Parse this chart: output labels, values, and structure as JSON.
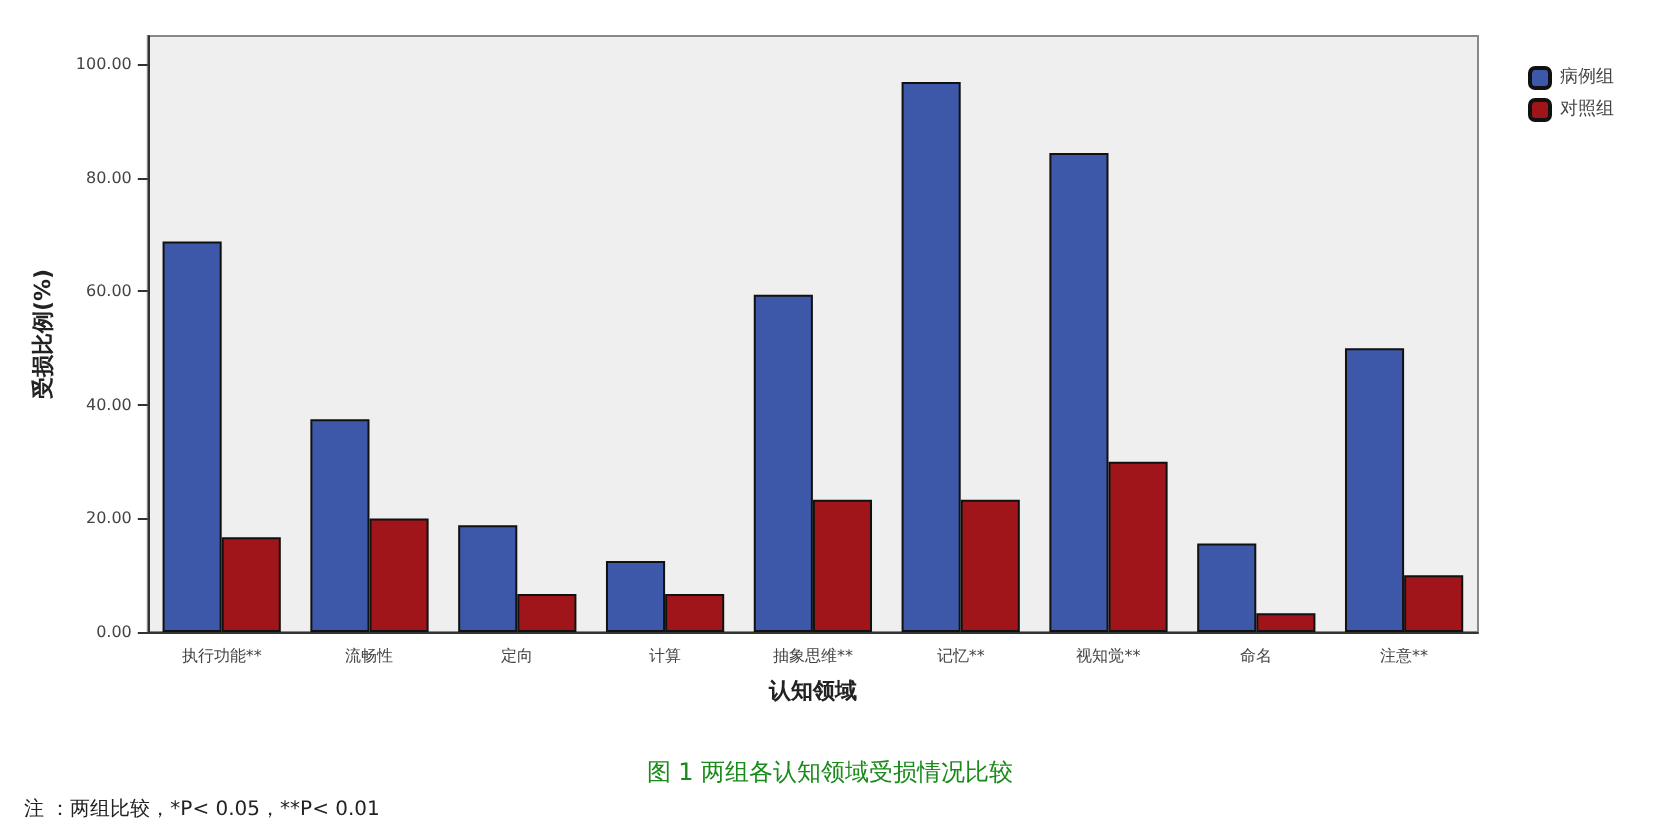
{
  "chart_data": {
    "type": "bar",
    "xlabel": "认知领域",
    "ylabel": "受损比例(%)",
    "categories": [
      "执行功能**",
      "流畅性",
      "定向",
      "计算",
      "抽象思维**",
      "记忆**",
      "视知觉**",
      "命名",
      "注意**"
    ],
    "series": [
      {
        "name": "病例组",
        "color": "#3d58a8",
        "values": [
          68.8,
          37.5,
          18.8,
          12.5,
          59.4,
          96.9,
          84.4,
          15.6,
          50.0
        ]
      },
      {
        "name": "对照组",
        "color": "#a0151a",
        "values": [
          16.7,
          20.0,
          6.7,
          6.7,
          23.3,
          23.3,
          30.0,
          3.3,
          10.0
        ]
      }
    ],
    "ylim": [
      0,
      105
    ],
    "yticks": [
      {
        "value": 0,
        "label": "0.00"
      },
      {
        "value": 20,
        "label": "20.00"
      },
      {
        "value": 40,
        "label": "40.00"
      },
      {
        "value": 60,
        "label": "60.00"
      },
      {
        "value": 80,
        "label": "80.00"
      },
      {
        "value": 100,
        "label": "100.00"
      }
    ],
    "grid": false,
    "legend": "top right",
    "annotations": [
      "图 1 两组各认知领域受损情况比较",
      "注 ：两组比较，*P< 0.05，**P< 0.01"
    ]
  }
}
